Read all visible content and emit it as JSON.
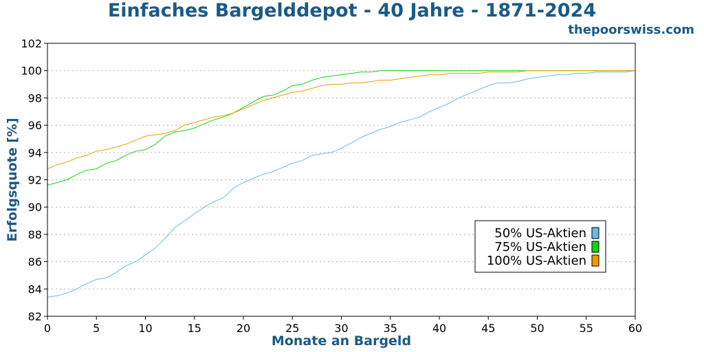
{
  "title": "Einfaches Bargelddepot - 40 Jahre - 1871-2024",
  "watermark": "thepoorswiss.com",
  "chart_data": {
    "type": "line",
    "xlabel": "Monate an Bargeld",
    "ylabel": "Erfolgsquote [%]",
    "xlim": [
      0,
      60
    ],
    "ylim": [
      82,
      102
    ],
    "xticks": [
      0,
      5,
      10,
      15,
      20,
      25,
      30,
      35,
      40,
      45,
      50,
      55,
      60
    ],
    "yticks": [
      82,
      84,
      86,
      88,
      90,
      92,
      94,
      96,
      98,
      100,
      102
    ],
    "grid": "horizontal dotted",
    "legend_position": "lower-right",
    "x": [
      0,
      1,
      2,
      3,
      4,
      5,
      6,
      7,
      8,
      9,
      10,
      11,
      12,
      13,
      14,
      15,
      16,
      17,
      18,
      19,
      20,
      21,
      22,
      23,
      24,
      25,
      26,
      27,
      28,
      29,
      30,
      31,
      32,
      33,
      34,
      35,
      36,
      37,
      38,
      39,
      40,
      41,
      42,
      43,
      44,
      45,
      46,
      47,
      48,
      49,
      50,
      51,
      52,
      53,
      54,
      55,
      56,
      57,
      58,
      59,
      60
    ],
    "series": [
      {
        "name": "50% US-Aktien",
        "color": "#6ab8e8",
        "values": [
          83.4,
          83.5,
          83.7,
          84.0,
          84.4,
          84.7,
          84.8,
          85.2,
          85.7,
          86.0,
          86.5,
          87.0,
          87.7,
          88.5,
          89.0,
          89.5,
          90.0,
          90.4,
          90.7,
          91.4,
          91.8,
          92.1,
          92.4,
          92.6,
          92.9,
          93.2,
          93.4,
          93.8,
          93.9,
          94.0,
          94.3,
          94.7,
          95.1,
          95.4,
          95.7,
          95.9,
          96.2,
          96.4,
          96.6,
          97.0,
          97.3,
          97.6,
          98.0,
          98.3,
          98.6,
          98.9,
          99.1,
          99.1,
          99.2,
          99.4,
          99.5,
          99.6,
          99.7,
          99.7,
          99.8,
          99.8,
          99.9,
          99.9,
          99.9,
          99.9,
          100.0
        ]
      },
      {
        "name": "75% US-Aktien",
        "color": "#11d411",
        "values": [
          91.6,
          91.8,
          92.0,
          92.4,
          92.7,
          92.8,
          93.2,
          93.4,
          93.8,
          94.1,
          94.2,
          94.6,
          95.2,
          95.5,
          95.6,
          95.8,
          96.1,
          96.4,
          96.6,
          96.9,
          97.3,
          97.7,
          98.1,
          98.2,
          98.5,
          98.9,
          99.0,
          99.3,
          99.5,
          99.6,
          99.7,
          99.8,
          99.9,
          99.9,
          100.0,
          100.0,
          100.0,
          100.0,
          100.0,
          100.0,
          100.0,
          100.0,
          100.0,
          100.0,
          100.0,
          100.0,
          100.0,
          100.0,
          100.0,
          100.0,
          100.0,
          100.0,
          100.0,
          100.0,
          100.0,
          100.0,
          100.0,
          100.0,
          100.0,
          100.0,
          100.0
        ]
      },
      {
        "name": "100% US-Aktien",
        "color": "#f09a00",
        "values": [
          92.8,
          93.1,
          93.3,
          93.6,
          93.8,
          94.1,
          94.2,
          94.4,
          94.6,
          94.9,
          95.2,
          95.3,
          95.4,
          95.6,
          96.0,
          96.2,
          96.4,
          96.6,
          96.7,
          96.9,
          97.2,
          97.5,
          97.8,
          98.0,
          98.2,
          98.4,
          98.5,
          98.7,
          98.9,
          99.0,
          99.0,
          99.1,
          99.1,
          99.2,
          99.3,
          99.3,
          99.4,
          99.5,
          99.6,
          99.7,
          99.7,
          99.8,
          99.8,
          99.8,
          99.8,
          99.9,
          99.9,
          99.9,
          99.9,
          100.0,
          100.0,
          100.0,
          100.0,
          100.0,
          100.0,
          100.0,
          100.0,
          100.0,
          100.0,
          100.0,
          100.0
        ]
      }
    ]
  }
}
